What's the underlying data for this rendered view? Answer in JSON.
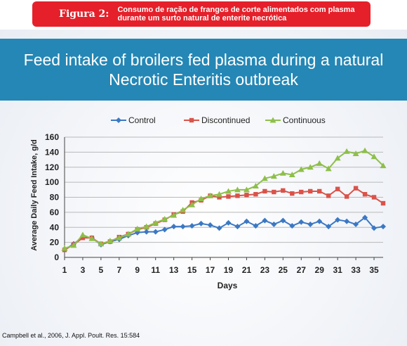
{
  "figure": {
    "label": "Figura 2:",
    "caption": "Consumo de ração de frangos de corte alimentados com plasma durante um surto natural de enterite necrótica"
  },
  "citation": "Campbell et al., 2006, J. Appl. Poult. Res. 15:584",
  "colors": {
    "banner": "#e5202a",
    "title_band": "#2487b5"
  },
  "chart_data": {
    "type": "line",
    "title": "Feed intake of broilers fed plasma during a natural\nNecrotic Enteritis outbreak",
    "xlabel": "Days",
    "ylabel": "Average Daily Feed Intake, g/d",
    "xlim": [
      1,
      36
    ],
    "ylim": [
      0,
      160
    ],
    "x_ticks": [
      1,
      3,
      5,
      7,
      9,
      11,
      13,
      15,
      17,
      19,
      21,
      23,
      25,
      27,
      29,
      31,
      33,
      35
    ],
    "y_ticks": [
      0,
      20,
      40,
      60,
      80,
      100,
      120,
      140,
      160
    ],
    "grid": "horizontal",
    "legend_position": "top",
    "x": [
      1,
      2,
      3,
      4,
      5,
      6,
      7,
      8,
      9,
      10,
      11,
      12,
      13,
      14,
      15,
      16,
      17,
      18,
      19,
      20,
      21,
      22,
      23,
      24,
      25,
      26,
      27,
      28,
      29,
      30,
      31,
      32,
      33,
      34,
      35,
      36
    ],
    "series": [
      {
        "name": "Control",
        "color": "#3b78c4",
        "marker": "diamond",
        "values": [
          10,
          18,
          27,
          26,
          17,
          21,
          24,
          29,
          33,
          34,
          34,
          37,
          41,
          41,
          42,
          45,
          43,
          39,
          46,
          41,
          48,
          42,
          49,
          44,
          49,
          42,
          47,
          44,
          48,
          41,
          50,
          48,
          44,
          53,
          39,
          41
        ]
      },
      {
        "name": "Discontinued",
        "color": "#d9534a",
        "marker": "square",
        "values": [
          10,
          17,
          26,
          26,
          18,
          21,
          27,
          31,
          37,
          40,
          45,
          50,
          57,
          61,
          73,
          76,
          82,
          80,
          81,
          82,
          83,
          84,
          88,
          87,
          89,
          85,
          87,
          88,
          88,
          82,
          91,
          81,
          92,
          84,
          80,
          72
        ]
      },
      {
        "name": "Continuous",
        "color": "#8ebf4a",
        "marker": "triangle",
        "values": [
          12,
          16,
          30,
          25,
          18,
          22,
          26,
          31,
          38,
          41,
          46,
          51,
          56,
          63,
          70,
          78,
          82,
          84,
          88,
          90,
          90,
          95,
          105,
          108,
          112,
          110,
          117,
          120,
          125,
          118,
          132,
          141,
          138,
          142,
          134,
          122
        ]
      }
    ]
  }
}
